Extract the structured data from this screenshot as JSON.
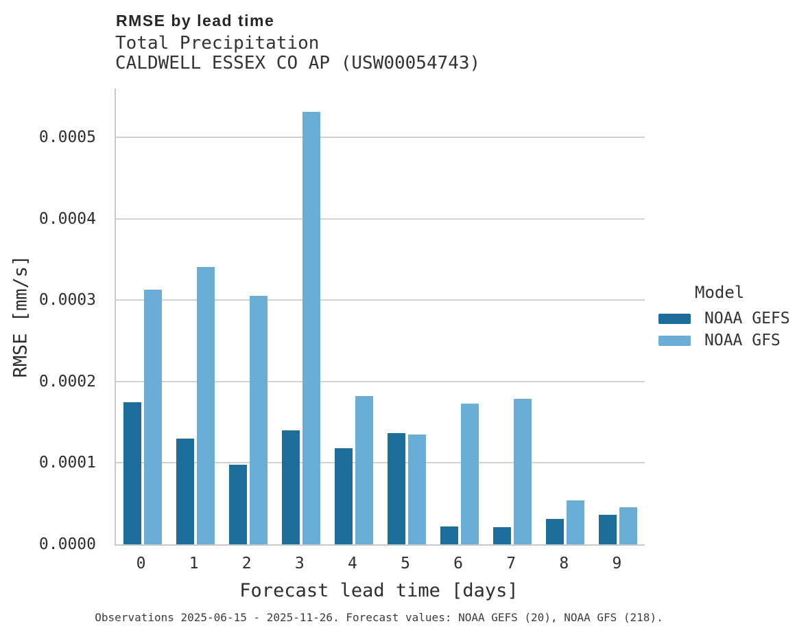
{
  "header": {
    "title": "RMSE by lead time",
    "subtitle1": "Total Precipitation",
    "subtitle2": "CALDWELL ESSEX CO AP (USW00054743)"
  },
  "chart_data": {
    "type": "bar",
    "title": "RMSE by lead time",
    "subtitle": [
      "Total Precipitation",
      "CALDWELL ESSEX CO AP (USW00054743)"
    ],
    "categories": [
      "0",
      "1",
      "2",
      "3",
      "4",
      "5",
      "6",
      "7",
      "8",
      "9"
    ],
    "series": [
      {
        "name": "NOAA GEFS",
        "color": "#1d6d9b",
        "values": [
          0.000175,
          0.00013,
          9.8e-05,
          0.00014,
          0.000118,
          0.000137,
          2.2e-05,
          2.1e-05,
          3.1e-05,
          3.6e-05
        ]
      },
      {
        "name": "NOAA GFS",
        "color": "#6aaed6",
        "values": [
          0.000313,
          0.000341,
          0.000305,
          0.000531,
          0.000182,
          0.000135,
          0.000173,
          0.000179,
          5.4e-05,
          4.6e-05
        ]
      }
    ],
    "xlabel": "Forecast lead time [days]",
    "ylabel": "RMSE [mm/s]",
    "ylim": [
      0,
      0.00056
    ],
    "yticks": [
      0,
      0.0001,
      0.0002,
      0.0003,
      0.0004,
      0.0005
    ],
    "ytick_labels": [
      "0.0000",
      "0.0001",
      "0.0002",
      "0.0003",
      "0.0004",
      "0.0005"
    ],
    "grid": true,
    "legend_title": "Model",
    "legend_position": "right"
  },
  "footer": {
    "caption": "Observations 2025-06-15 - 2025-11-26. Forecast values: NOAA GEFS (20), NOAA GFS (218)."
  },
  "colors": {
    "gefs_bar": "#1d6d9b",
    "gfs_bar": "#6aaed6",
    "gridline": "#d2d2d2",
    "axis_line": "#c9c9c9",
    "text": "#2e2e2e"
  }
}
